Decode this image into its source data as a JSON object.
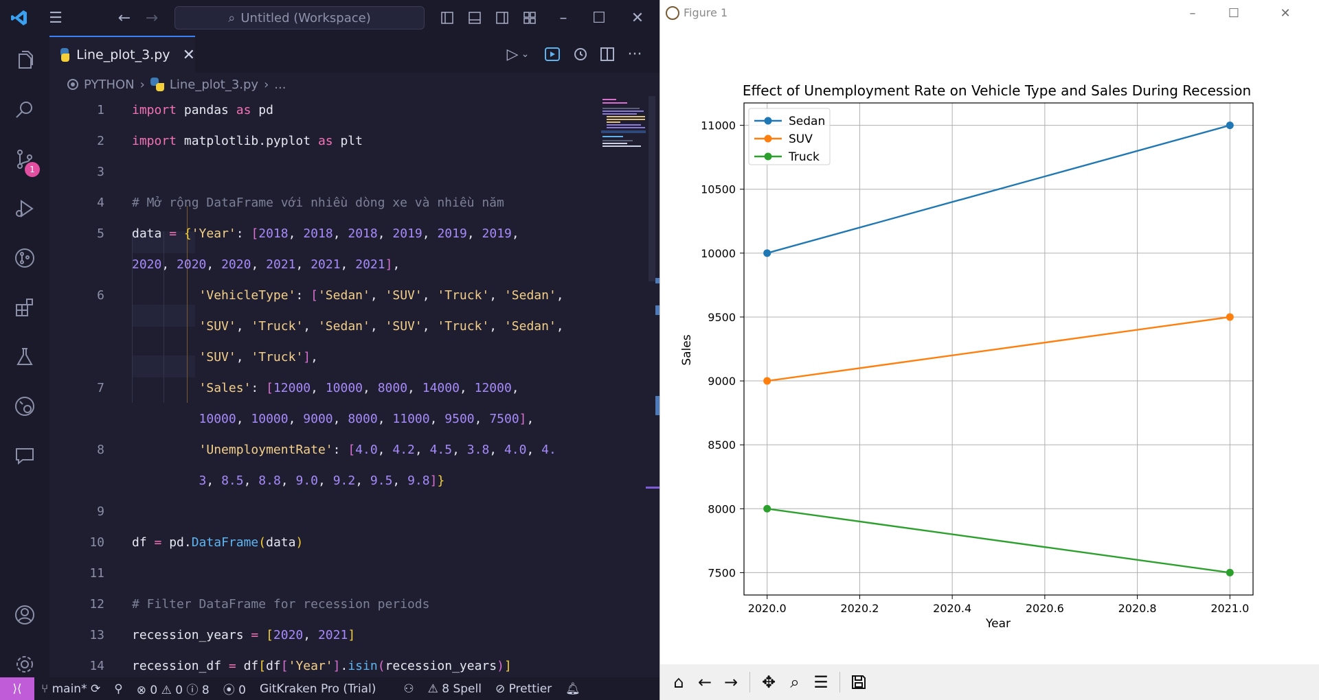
{
  "vscode": {
    "search_placeholder": "Untitled (Workspace)",
    "scm_badge": "1",
    "tab": {
      "label": "Line_plot_3.py"
    },
    "breadcrumb": {
      "root": "PYTHON",
      "file": "Line_plot_3.py",
      "more": "..."
    },
    "line_numbers": [
      "1",
      "2",
      "3",
      "4",
      "5",
      "6",
      "7",
      "8",
      "9",
      "10",
      "11",
      "12",
      "13",
      "14"
    ],
    "status": {
      "branch": "main*",
      "errors": "0",
      "warnings": "0",
      "info": "8",
      "ports": "0",
      "gitkraken": "GitKraken Pro (Trial)",
      "spell": "8 Spell",
      "prettier": "Prettier"
    }
  },
  "figure": {
    "window_title": "Figure 1"
  },
  "chart_data": {
    "type": "line",
    "title": "Effect of Unemployment Rate on Vehicle Type and Sales During Recession",
    "xlabel": "Year",
    "ylabel": "Sales",
    "x": [
      2020.0,
      2021.0
    ],
    "xlim": [
      2019.95,
      2021.05
    ],
    "ylim": [
      7325,
      11175
    ],
    "xticks": [
      "2020.0",
      "2020.2",
      "2020.4",
      "2020.6",
      "2020.8",
      "2021.0"
    ],
    "yticks": [
      "7500",
      "8000",
      "8500",
      "9000",
      "9500",
      "10000",
      "10500",
      "11000"
    ],
    "grid": true,
    "legend_position": "top-left",
    "series": [
      {
        "name": "Sedan",
        "color": "#1f77b4",
        "values": [
          10000,
          11000
        ]
      },
      {
        "name": "SUV",
        "color": "#ff7f0e",
        "values": [
          9000,
          9500
        ]
      },
      {
        "name": "Truck",
        "color": "#2ca02c",
        "values": [
          8000,
          7500
        ]
      }
    ]
  }
}
